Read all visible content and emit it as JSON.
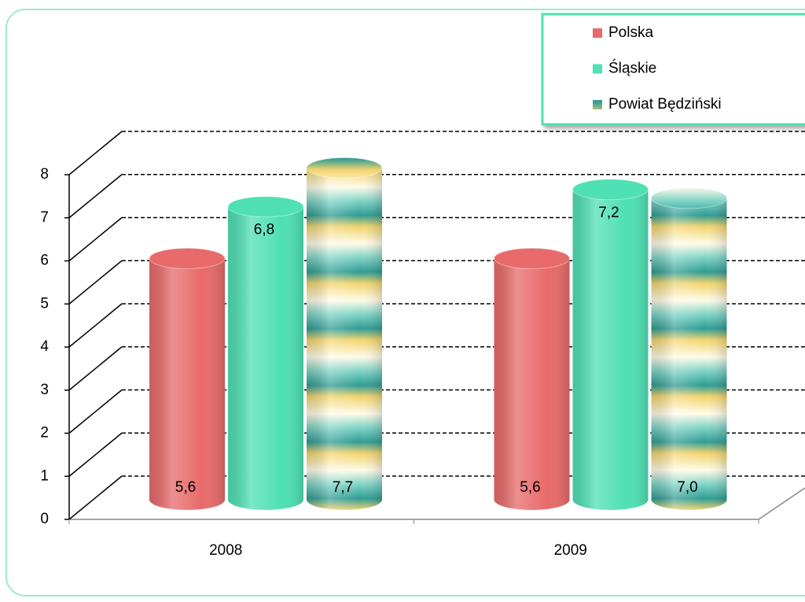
{
  "chart_data": {
    "type": "bar",
    "categories": [
      "2008",
      "2009"
    ],
    "series": [
      {
        "name": "Polska",
        "color": "#e86a6a",
        "values": [
          5.6,
          5.6
        ],
        "value_labels": [
          "5,6",
          "5,6"
        ]
      },
      {
        "name": "Śląskie",
        "color": "#4fe0b4",
        "values": [
          6.8,
          7.2
        ],
        "value_labels": [
          "6,8",
          "7,2"
        ]
      },
      {
        "name": "Powiat Będziński",
        "color": "#f2d46e",
        "values": [
          7.7,
          7.0
        ],
        "value_labels": [
          "7,7",
          "7,0"
        ]
      }
    ],
    "ylim": [
      0,
      8
    ],
    "yticks": [
      0,
      1,
      2,
      3,
      4,
      5,
      6,
      7,
      8
    ],
    "grid": true,
    "legend": "top-right"
  }
}
